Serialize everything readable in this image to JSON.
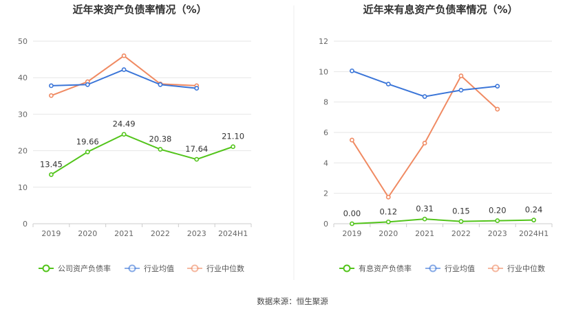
{
  "source_label": "数据来源：恒生聚源",
  "chart_data": [
    {
      "type": "line",
      "title": "近年来资产负债率情况（%）",
      "categories": [
        "2019",
        "2020",
        "2021",
        "2022",
        "2023",
        "2024H1"
      ],
      "ylim": [
        0,
        50
      ],
      "yticks": [
        "0",
        "10",
        "20",
        "30",
        "40",
        "50"
      ],
      "grid": true,
      "legend_position": "bottom",
      "series": [
        {
          "name": "公司资产负债率",
          "color": "#52c41a",
          "values": [
            13.45,
            19.66,
            24.49,
            20.38,
            17.64,
            21.1
          ],
          "labels": [
            "13.45",
            "19.66",
            "24.49",
            "20.38",
            "17.64",
            "21.10"
          ]
        },
        {
          "name": "行业均值",
          "color": "#3a75d8",
          "values": [
            37.8,
            38.1,
            42.2,
            38.1,
            37.1,
            null
          ]
        },
        {
          "name": "行业中位数",
          "color": "#f08a62",
          "values": [
            35.1,
            38.9,
            46.0,
            38.3,
            37.8,
            null
          ]
        }
      ]
    },
    {
      "type": "line",
      "title": "近年来有息资产负债率情况（%）",
      "categories": [
        "2019",
        "2020",
        "2021",
        "2022",
        "2023",
        "2024H1"
      ],
      "ylim": [
        0,
        12
      ],
      "yticks": [
        "0",
        "2",
        "4",
        "6",
        "8",
        "10",
        "12"
      ],
      "grid": true,
      "legend_position": "bottom",
      "series": [
        {
          "name": "有息资产负债率",
          "color": "#52c41a",
          "values": [
            0.0,
            0.12,
            0.31,
            0.15,
            0.2,
            0.24
          ],
          "labels": [
            "0.00",
            "0.12",
            "0.31",
            "0.15",
            "0.20",
            "0.24"
          ]
        },
        {
          "name": "行业均值",
          "color": "#3a75d8",
          "values": [
            10.05,
            9.18,
            8.36,
            8.78,
            9.04,
            null
          ]
        },
        {
          "name": "行业中位数",
          "color": "#f08a62",
          "values": [
            5.5,
            1.75,
            5.3,
            9.72,
            7.53,
            null
          ]
        }
      ]
    }
  ]
}
